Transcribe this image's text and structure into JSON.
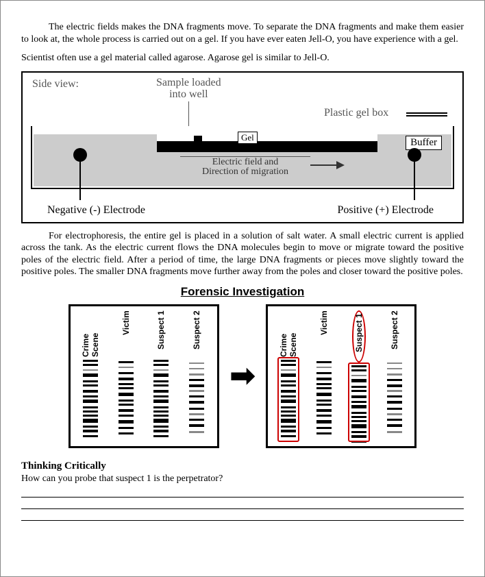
{
  "paragraphs": {
    "p1": "The electric fields makes the DNA fragments move. To separate the DNA fragments and make them easier to look at, the whole process is carried out on a gel. If you have ever eaten Jell-O, you have experience with a gel.",
    "p2": "Scientist often use a gel material called agarose. Agarose gel is similar to Jell-O.",
    "p3": "For electrophoresis, the entire gel is placed in a solution of salt water. A small electric current is applied across the tank. As the electric current flows the DNA molecules begin to move or migrate toward the positive poles of the electric field. After a period of time, the large DNA fragments or pieces move slightly toward the positive poles. The smaller DNA fragments move further away from the poles and closer toward the positive poles."
  },
  "diagram1": {
    "side_view": "Side view:",
    "sample_loaded": "Sample loaded\ninto well",
    "plastic_gel_box": "Plastic gel box",
    "gel": "Gel",
    "buffer": "Buffer",
    "electric_field": "Electric field and\nDirection of migration",
    "neg_electrode": "Negative (-) Electrode",
    "pos_electrode": "Positive (+) Electrode"
  },
  "forensic": {
    "title": "Forensic Investigation",
    "lanes": [
      "Crime Scene",
      "Victim",
      "Suspect 1",
      "Suspect 2"
    ],
    "band_sets": {
      "crime": [
        {
          "t": 0,
          "h": 3
        },
        {
          "t": 6,
          "h": 3
        },
        {
          "t": 14,
          "h": 2,
          "f": 1
        },
        {
          "t": 20,
          "h": 5
        },
        {
          "t": 30,
          "h": 3
        },
        {
          "t": 36,
          "h": 3
        },
        {
          "t": 44,
          "h": 4
        },
        {
          "t": 52,
          "h": 3
        },
        {
          "t": 58,
          "h": 5
        },
        {
          "t": 68,
          "h": 3
        },
        {
          "t": 74,
          "h": 3
        },
        {
          "t": 80,
          "h": 3
        },
        {
          "t": 86,
          "h": 6
        },
        {
          "t": 96,
          "h": 3
        },
        {
          "t": 102,
          "h": 4
        },
        {
          "t": 110,
          "h": 3
        }
      ],
      "victim": [
        {
          "t": 2,
          "h": 3
        },
        {
          "t": 10,
          "h": 2,
          "f": 1
        },
        {
          "t": 18,
          "h": 3
        },
        {
          "t": 26,
          "h": 4
        },
        {
          "t": 34,
          "h": 3
        },
        {
          "t": 40,
          "h": 3
        },
        {
          "t": 48,
          "h": 5
        },
        {
          "t": 58,
          "h": 3
        },
        {
          "t": 64,
          "h": 3
        },
        {
          "t": 72,
          "h": 4
        },
        {
          "t": 80,
          "h": 3
        },
        {
          "t": 88,
          "h": 5
        },
        {
          "t": 98,
          "h": 3
        },
        {
          "t": 106,
          "h": 3
        }
      ],
      "suspect1": [
        {
          "t": 0,
          "h": 3
        },
        {
          "t": 6,
          "h": 3
        },
        {
          "t": 14,
          "h": 2,
          "f": 1
        },
        {
          "t": 20,
          "h": 5
        },
        {
          "t": 30,
          "h": 3
        },
        {
          "t": 36,
          "h": 3
        },
        {
          "t": 44,
          "h": 4
        },
        {
          "t": 52,
          "h": 3
        },
        {
          "t": 58,
          "h": 5
        },
        {
          "t": 68,
          "h": 3
        },
        {
          "t": 74,
          "h": 3
        },
        {
          "t": 80,
          "h": 3
        },
        {
          "t": 86,
          "h": 6
        },
        {
          "t": 96,
          "h": 3
        },
        {
          "t": 102,
          "h": 4
        },
        {
          "t": 110,
          "h": 3
        }
      ],
      "suspect2": [
        {
          "t": 4,
          "h": 2,
          "f": 1
        },
        {
          "t": 12,
          "h": 2,
          "f": 1
        },
        {
          "t": 20,
          "h": 3,
          "f": 1
        },
        {
          "t": 28,
          "h": 3
        },
        {
          "t": 36,
          "h": 4
        },
        {
          "t": 44,
          "h": 3,
          "f": 1
        },
        {
          "t": 52,
          "h": 3
        },
        {
          "t": 60,
          "h": 4
        },
        {
          "t": 70,
          "h": 3
        },
        {
          "t": 78,
          "h": 3,
          "f": 1
        },
        {
          "t": 86,
          "h": 3
        },
        {
          "t": 94,
          "h": 4
        },
        {
          "t": 104,
          "h": 3,
          "f": 1
        }
      ]
    },
    "highlight_lanes_right": [
      "crime",
      "suspect1"
    ],
    "circle_label_right": "suspect1"
  },
  "thinking_critically": {
    "heading": "Thinking Critically",
    "question": "How can you probe that suspect 1 is the perpetrator?"
  },
  "colors": {
    "page_bg": "#ffffff",
    "text": "#000000",
    "diagram_label": "#555555",
    "buffer_fill": "#cccccc",
    "highlight": "#cc0000",
    "faint_band": "#888888"
  }
}
